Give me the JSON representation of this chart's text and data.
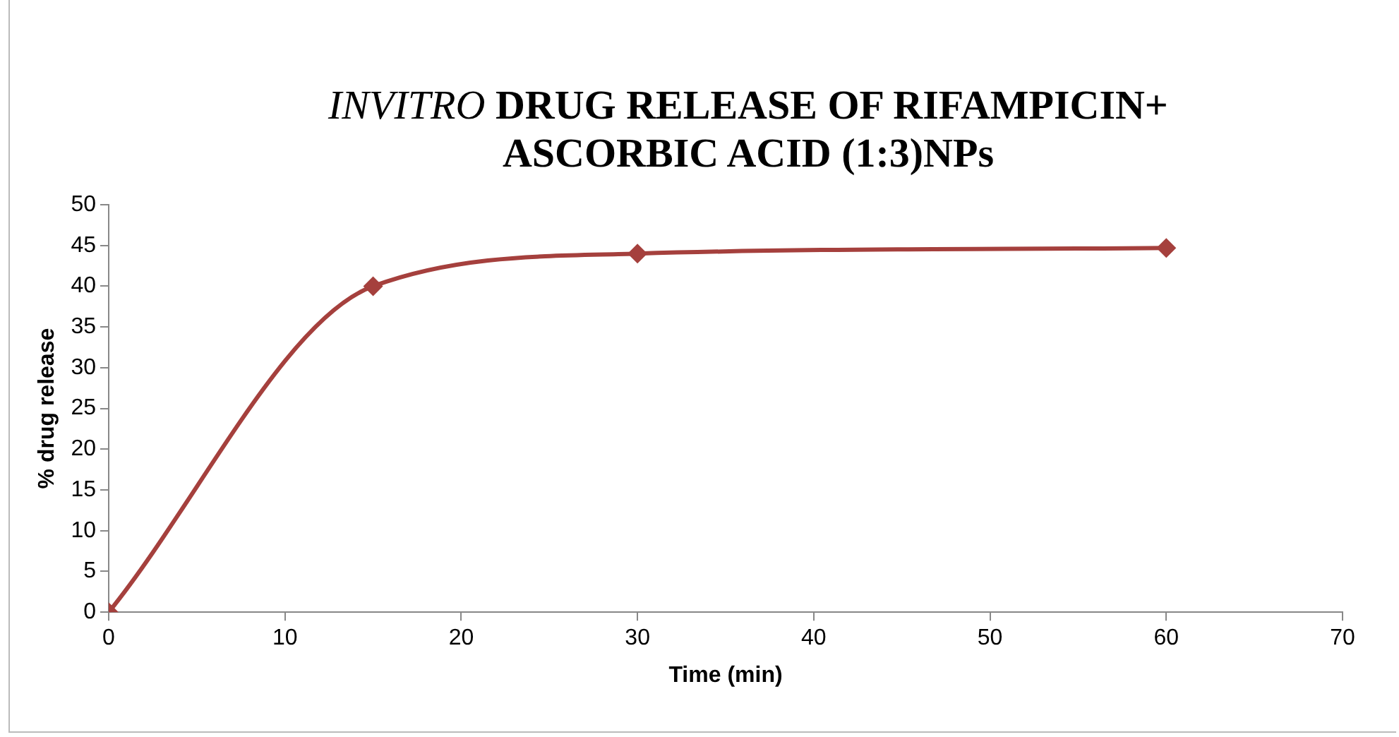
{
  "chart_data": {
    "type": "line",
    "title": "INVITRO DRUG RELEASE OF RIFAMPICIN+ ASCORBIC ACID (1:3)NPs",
    "xlabel": "Time (min)",
    "ylabel": "% drug release",
    "x": [
      0,
      15,
      30,
      60
    ],
    "series": [
      {
        "color": "#a5403d",
        "values": [
          0,
          40,
          44,
          44.7
        ]
      }
    ],
    "xlim": [
      0,
      70
    ],
    "xticks": [
      0,
      10,
      20,
      30,
      40,
      50,
      60,
      70
    ],
    "ylim": [
      0,
      50
    ],
    "yticks": [
      0,
      5,
      10,
      15,
      20,
      25,
      30,
      35,
      40,
      45,
      50
    ],
    "grid": false,
    "legend": false,
    "marker": "diamond",
    "line_style": "solid"
  }
}
